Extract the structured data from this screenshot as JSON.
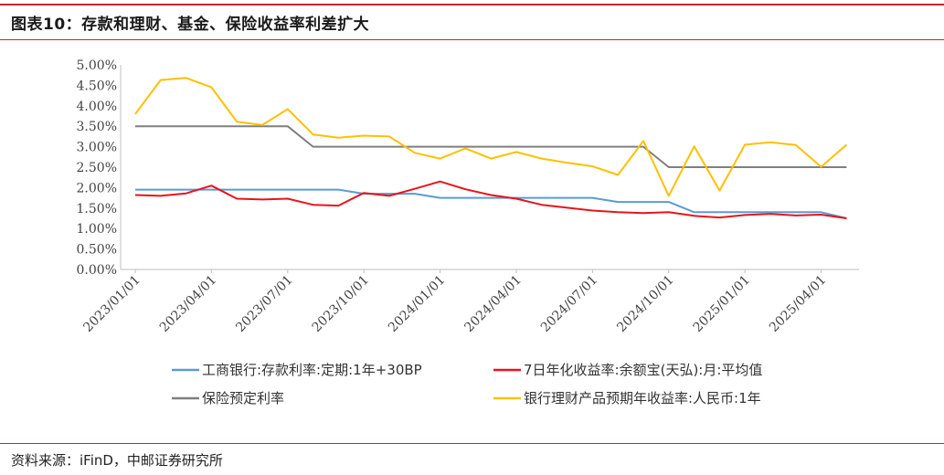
{
  "title": "图表10：存款和理财、基金、保险收益率利差扩大",
  "source": "资料来源：iFinD，中邮证券研究所",
  "colors": {
    "accent": "#c0272d"
  },
  "chart_data": {
    "type": "line",
    "ylim": [
      0,
      5
    ],
    "y_tick_labels": [
      "0.00%",
      "0.50%",
      "1.00%",
      "1.50%",
      "2.00%",
      "2.50%",
      "3.00%",
      "3.50%",
      "4.00%",
      "4.50%",
      "5.00%"
    ],
    "x_tick_labels": [
      "2023/01/01",
      "2023/04/01",
      "2023/07/01",
      "2023/10/01",
      "2024/01/01",
      "2024/04/01",
      "2024/07/01",
      "2024/10/01",
      "2025/01/01",
      "2025/04/01"
    ],
    "x": [
      "2023/01",
      "2023/02",
      "2023/03",
      "2023/04",
      "2023/05",
      "2023/06",
      "2023/07",
      "2023/08",
      "2023/09",
      "2023/10",
      "2023/11",
      "2023/12",
      "2024/01",
      "2024/02",
      "2024/03",
      "2024/04",
      "2024/05",
      "2024/06",
      "2024/07",
      "2024/08",
      "2024/09",
      "2024/10",
      "2024/11",
      "2024/12",
      "2025/01",
      "2025/02",
      "2025/03",
      "2025/04",
      "2025/05"
    ],
    "series": [
      {
        "name": "工商银行:存款利率:定期:1年+30BP",
        "color": "#5b9bd5",
        "values": [
          1.95,
          1.95,
          1.95,
          1.95,
          1.95,
          1.95,
          1.95,
          1.95,
          1.95,
          1.85,
          1.85,
          1.85,
          1.75,
          1.75,
          1.75,
          1.75,
          1.75,
          1.75,
          1.75,
          1.65,
          1.65,
          1.65,
          1.4,
          1.4,
          1.4,
          1.4,
          1.4,
          1.4,
          1.25
        ]
      },
      {
        "name": "7日年化收益率:余额宝(天弘):月:平均值",
        "color": "#e8141b",
        "values": [
          1.82,
          1.8,
          1.86,
          2.05,
          1.73,
          1.71,
          1.73,
          1.58,
          1.56,
          1.87,
          1.8,
          1.97,
          2.15,
          1.96,
          1.82,
          1.73,
          1.58,
          1.51,
          1.44,
          1.4,
          1.38,
          1.4,
          1.31,
          1.27,
          1.33,
          1.36,
          1.32,
          1.34,
          1.25
        ]
      },
      {
        "name": "保险预定利率",
        "color": "#7f7f7f",
        "values": [
          3.5,
          3.5,
          3.5,
          3.5,
          3.5,
          3.5,
          3.5,
          3.0,
          3.0,
          3.0,
          3.0,
          3.0,
          3.0,
          3.0,
          3.0,
          3.0,
          3.0,
          3.0,
          3.0,
          3.0,
          3.0,
          2.5,
          2.5,
          2.5,
          2.5,
          2.5,
          2.5,
          2.5,
          2.5
        ]
      },
      {
        "name": "银行理财产品预期年收益率:人民币:1年",
        "color": "#ffc000",
        "values": [
          3.8,
          4.63,
          4.68,
          4.45,
          3.61,
          3.53,
          3.92,
          3.3,
          3.22,
          3.27,
          3.25,
          2.85,
          2.71,
          2.96,
          2.71,
          2.87,
          2.71,
          2.61,
          2.52,
          2.31,
          3.14,
          1.8,
          3.01,
          1.93,
          3.05,
          3.11,
          3.04,
          2.51,
          3.05
        ]
      }
    ]
  }
}
